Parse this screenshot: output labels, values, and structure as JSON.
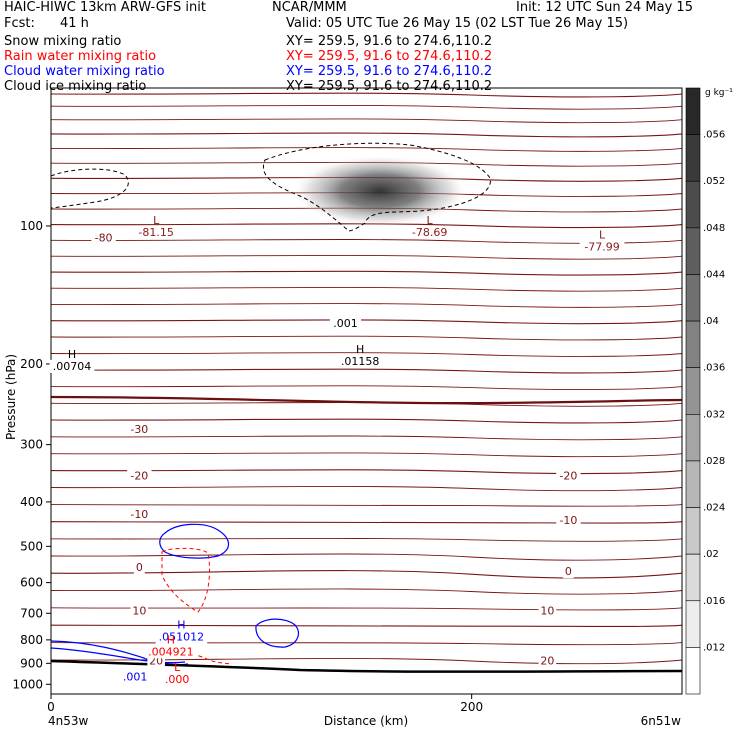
{
  "header": {
    "model": "HAIC-HIWC 13km ARW-GFS init",
    "org": "NCAR/MMM",
    "init": "Init: 12 UTC Sun 24 May 15",
    "fcst_label": "Fcst:",
    "fcst_value": "41 h",
    "valid": "Valid: 05 UTC Tue 26 May 15 (02 LST Tue 26 May 15)",
    "fields": [
      {
        "name": "Snow mixing ratio",
        "xy": "XY= 259.5, 91.6 to 274.6,110.2",
        "color": "#000000"
      },
      {
        "name": "Rain water mixing ratio",
        "xy": "XY= 259.5, 91.6 to 274.6,110.2",
        "color": "#ff0000"
      },
      {
        "name": "Cloud water mixing ratio",
        "xy": "XY= 259.5, 91.6 to 274.6,110.2",
        "color": "#0000ff"
      },
      {
        "name": "Cloud ice mixing ratio",
        "xy": "XY= 259.5, 91.6 to 274.6,110.2",
        "color": "#000000"
      }
    ]
  },
  "chart_data": {
    "type": "contour",
    "xlabel": "Distance (km)",
    "ylabel": "Pressure (hPa)",
    "xlim": [
      0,
      300
    ],
    "ylim": [
      1050,
      50
    ],
    "y_scale": "log",
    "x_ticks": [
      "0",
      "200"
    ],
    "y_ticks": [
      "100",
      "200",
      "300",
      "400",
      "500",
      "600",
      "700",
      "800",
      "900",
      "1000"
    ],
    "x_start_label": "4n53w",
    "x_end_label": "6n51w",
    "colorbar": {
      "units": "g kg⁻¹",
      "ticks": [
        ".012",
        ".016",
        ".02",
        ".024",
        ".028",
        ".032",
        ".036",
        ".04",
        ".044",
        ".048",
        ".052",
        ".056"
      ]
    },
    "temperature_labels": [
      {
        "text": "-80",
        "x": 25,
        "p": 108
      },
      {
        "text": "-30",
        "x": 42,
        "p": 283
      },
      {
        "text": "-20",
        "x": 42,
        "p": 357
      },
      {
        "text": "-20",
        "x": 246,
        "p": 357
      },
      {
        "text": "-10",
        "x": 42,
        "p": 434
      },
      {
        "text": "-10",
        "x": 246,
        "p": 447
      },
      {
        "text": "0",
        "x": 42,
        "p": 566
      },
      {
        "text": "0",
        "x": 246,
        "p": 578
      },
      {
        "text": "10",
        "x": 42,
        "p": 704
      },
      {
        "text": "10",
        "x": 236,
        "p": 704
      },
      {
        "text": "20",
        "x": 50,
        "p": 905
      },
      {
        "text": "20",
        "x": 236,
        "p": 905
      }
    ],
    "extrema": [
      {
        "marker": "L",
        "value": "-81.15",
        "x": 50,
        "p": 104,
        "color": "#8b1a1a"
      },
      {
        "marker": "L",
        "value": "-78.69",
        "x": 180,
        "p": 104,
        "color": "#8b1a1a"
      },
      {
        "marker": "L",
        "value": "-77.99",
        "x": 262,
        "p": 112,
        "color": "#8b1a1a"
      },
      {
        "marker": "H",
        "value": ".00704",
        "x": 10,
        "p": 204,
        "color": "#000000"
      },
      {
        "marker": "H",
        "value": ".01158",
        "x": 147,
        "p": 199,
        "color": "#000000"
      },
      {
        "marker": "H",
        "value": ".051012",
        "x": 62,
        "p": 795,
        "color": "#0000ff"
      },
      {
        "marker": "H",
        "value": ".004921",
        "x": 57,
        "p": 856,
        "color": "#ff0000"
      },
      {
        "marker": "L",
        "value": ".000",
        "x": 60,
        "p": 983,
        "color": "#ff0000"
      }
    ],
    "contour_labels": [
      {
        "text": ".001",
        "x": 140,
        "p": 166,
        "color": "#000000"
      },
      {
        "text": ".001",
        "x": 40,
        "p": 982,
        "color": "#0000ff"
      }
    ]
  }
}
